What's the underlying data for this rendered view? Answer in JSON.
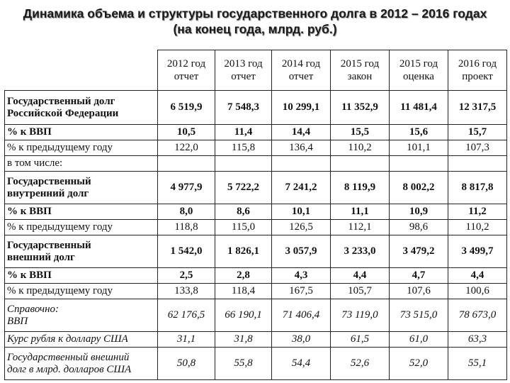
{
  "title": {
    "line1": "Динамика объема и структуры государственного долга в 2012 – 2016 годах",
    "line2": "(на конец года, млрд. руб.)"
  },
  "columns": [
    {
      "line1": "2012 год",
      "line2": "отчет"
    },
    {
      "line1": "2013 год",
      "line2": "отчет"
    },
    {
      "line1": "2014 год",
      "line2": "отчет"
    },
    {
      "line1": "2015 год",
      "line2": "закон"
    },
    {
      "line1": "2015 год",
      "line2": "оценка"
    },
    {
      "line1": "2016 год",
      "line2": "проект"
    }
  ],
  "rows": [
    {
      "label1": "Государственный долг",
      "label2": "Российской Федерации",
      "values": [
        "6 519,9",
        "7 548,3",
        "10 299,1",
        "11 352,9",
        "11 481,4",
        "12 317,5"
      ],
      "bold": true,
      "italic": false
    },
    {
      "label1": "% к ВВП",
      "values": [
        "10,5",
        "11,4",
        "14,4",
        "15,5",
        "15,6",
        "15,7"
      ],
      "bold": true,
      "italic": false
    },
    {
      "label1": "% к предыдущему году",
      "values": [
        "122,0",
        "115,8",
        "136,4",
        "110,2",
        "101,1",
        "107,3"
      ],
      "bold": false,
      "italic": false
    },
    {
      "label1": "в том числе:",
      "values": [],
      "bold": false,
      "italic": false
    },
    {
      "label1": "Государственный",
      "label2": "внутренний долг",
      "values": [
        "4 977,9",
        "5 722,2",
        "7 241,2",
        "8 119,9",
        "8 002,2",
        "8 817,8"
      ],
      "bold": true,
      "italic": false
    },
    {
      "label1": "% к ВВП",
      "values": [
        "8,0",
        "8,6",
        "10,1",
        "11,1",
        "10,9",
        "11,2"
      ],
      "bold": true,
      "italic": false
    },
    {
      "label1": "% к предыдущему году",
      "values": [
        "118,8",
        "115,0",
        "126,5",
        "112,1",
        "98,6",
        "110,2"
      ],
      "bold": false,
      "italic": false
    },
    {
      "label1": "Государственный",
      "label2": "внешний долг",
      "values": [
        "1 542,0",
        "1 826,1",
        "3 057,9",
        "3 233,0",
        "3 479,2",
        "3 499,7"
      ],
      "bold": true,
      "italic": false
    },
    {
      "label1": "% к ВВП",
      "values": [
        "2,5",
        "2,8",
        "4,3",
        "4,4",
        "4,7",
        "4,4"
      ],
      "bold": true,
      "italic": false
    },
    {
      "label1": "% к предыдущему году",
      "values": [
        "133,8",
        "118,4",
        "167,5",
        "105,7",
        "107,6",
        "100,6"
      ],
      "bold": false,
      "italic": false
    },
    {
      "label1": "Справочно:",
      "label2": "ВВП",
      "values": [
        "62 176,5",
        "66 190,1",
        "71 406,4",
        "73 119,0",
        "73 515,0",
        "78 673,0"
      ],
      "bold": false,
      "italic": true
    },
    {
      "label1": "Курс рубля к доллару США",
      "values": [
        "31,1",
        "31,8",
        "38,0",
        "61,5",
        "61,0",
        "63,3"
      ],
      "bold": false,
      "italic": true
    },
    {
      "label1": "Государственный внешний",
      "label2": "долг в млрд. долларов США",
      "values": [
        "50,8",
        "55,8",
        "54,4",
        "52,6",
        "52,0",
        "55,1"
      ],
      "bold": false,
      "italic": true
    }
  ]
}
